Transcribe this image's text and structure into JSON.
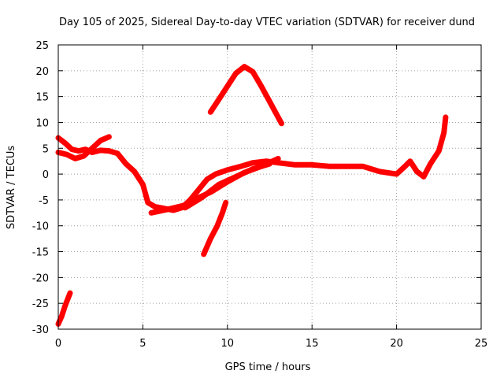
{
  "chart_data": {
    "type": "line",
    "title": "Day 105 of 2025, Sidereal Day-to-day VTEC variation (SDTVAR) for receiver dund",
    "xlabel": "GPS time / hours",
    "ylabel": "SDTVAR / TECUs",
    "xlim": [
      0,
      25
    ],
    "ylim": [
      -30,
      25
    ],
    "x_ticks": [
      0,
      5,
      10,
      15,
      20,
      25
    ],
    "y_ticks": [
      -30,
      -25,
      -20,
      -15,
      -10,
      -5,
      0,
      5,
      10,
      15,
      20,
      25
    ],
    "grid": true,
    "color": "#ff0000",
    "series": [
      {
        "name": "main-track",
        "points": [
          [
            0,
            7
          ],
          [
            0.4,
            6
          ],
          [
            0.8,
            4.8
          ],
          [
            1.2,
            4.5
          ],
          [
            1.6,
            4.8
          ],
          [
            2.0,
            4.2
          ],
          [
            2.5,
            4.6
          ],
          [
            3.0,
            4.5
          ],
          [
            3.5,
            4.0
          ],
          [
            4.0,
            2
          ],
          [
            4.5,
            0.5
          ],
          [
            5.0,
            -2
          ],
          [
            5.3,
            -5.5
          ],
          [
            5.7,
            -6.3
          ],
          [
            6.2,
            -6.6
          ],
          [
            6.8,
            -7
          ],
          [
            7.3,
            -6.5
          ],
          [
            7.8,
            -5
          ],
          [
            8.3,
            -3
          ],
          [
            8.8,
            -1
          ],
          [
            9.3,
            0
          ],
          [
            10.0,
            0.8
          ],
          [
            10.8,
            1.5
          ],
          [
            11.5,
            2.2
          ],
          [
            12.3,
            2.5
          ],
          [
            13.0,
            2.2
          ],
          [
            14.0,
            1.8
          ],
          [
            15.0,
            1.8
          ],
          [
            16.0,
            1.5
          ],
          [
            17.0,
            1.5
          ],
          [
            18.0,
            1.5
          ],
          [
            19.0,
            0.5
          ],
          [
            20.0,
            0
          ],
          [
            20.5,
            1.5
          ],
          [
            20.8,
            2.5
          ],
          [
            21.2,
            0.5
          ],
          [
            21.6,
            -0.5
          ],
          [
            22.0,
            2
          ],
          [
            22.5,
            4.5
          ],
          [
            22.8,
            8
          ],
          [
            22.9,
            11
          ]
        ]
      },
      {
        "name": "early-track",
        "points": [
          [
            0,
            4.2
          ],
          [
            0.5,
            3.8
          ],
          [
            1.0,
            3.0
          ],
          [
            1.5,
            3.5
          ],
          [
            2.0,
            5.0
          ],
          [
            2.5,
            6.5
          ],
          [
            3.0,
            7.2
          ]
        ]
      },
      {
        "name": "evening-track",
        "points": [
          [
            5.5,
            -7.5
          ],
          [
            6.5,
            -6.8
          ],
          [
            7.5,
            -6
          ],
          [
            8.0,
            -5
          ],
          [
            9.0,
            -3.5
          ],
          [
            10.0,
            -1.5
          ],
          [
            11.0,
            0.3
          ],
          [
            12.0,
            1.5
          ],
          [
            13.0,
            3
          ]
        ]
      },
      {
        "name": "low-track",
        "points": [
          [
            7.5,
            -6.5
          ],
          [
            8.5,
            -4.5
          ],
          [
            9.5,
            -2
          ],
          [
            10.5,
            -0.5
          ],
          [
            11.5,
            1
          ],
          [
            12.5,
            2
          ]
        ]
      },
      {
        "name": "upper-arc",
        "points": [
          [
            9.0,
            12
          ],
          [
            9.5,
            14.5
          ],
          [
            10.0,
            17
          ],
          [
            10.5,
            19.5
          ],
          [
            11.0,
            20.8
          ],
          [
            11.5,
            19.8
          ],
          [
            12.0,
            17
          ],
          [
            12.5,
            14
          ],
          [
            13.2,
            9.8
          ]
        ]
      },
      {
        "name": "mid-rise",
        "points": [
          [
            8.6,
            -15.5
          ],
          [
            9.0,
            -12.5
          ],
          [
            9.4,
            -10
          ],
          [
            9.7,
            -7.5
          ],
          [
            9.9,
            -5.5
          ]
        ]
      },
      {
        "name": "start-dip",
        "points": [
          [
            0,
            -29
          ],
          [
            0.2,
            -27.5
          ],
          [
            0.4,
            -25.5
          ],
          [
            0.7,
            -23
          ]
        ]
      }
    ]
  }
}
